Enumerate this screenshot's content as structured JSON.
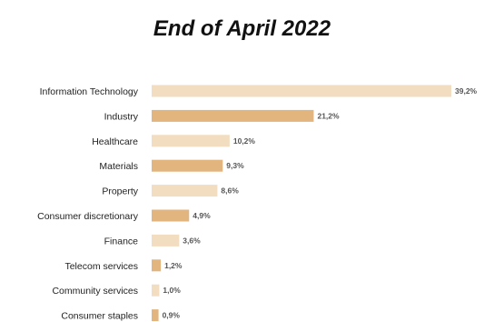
{
  "chart_data": {
    "type": "bar",
    "orientation": "horizontal",
    "title": "End of April 2022",
    "categories": [
      "Information Technology",
      "Industry",
      "Healthcare",
      "Materials",
      "Property",
      "Consumer discretionary",
      "Finance",
      "Telecom services",
      "Community services",
      "Consumer staples"
    ],
    "values": [
      39.2,
      21.2,
      10.2,
      9.3,
      8.6,
      4.9,
      3.6,
      1.2,
      1.0,
      0.9
    ],
    "value_labels": [
      "39,2%",
      "21,2%",
      "10,2%",
      "9,3%",
      "8,6%",
      "4,9%",
      "3,6%",
      "1,2%",
      "1,0%",
      "0,9%"
    ],
    "unit": "%",
    "xlim": [
      0,
      39.2
    ],
    "xlabel": "",
    "ylabel": "",
    "grid": false,
    "legend": "none",
    "colors": {
      "light": "#f2ddc0",
      "dark": "#e3b57e"
    }
  }
}
